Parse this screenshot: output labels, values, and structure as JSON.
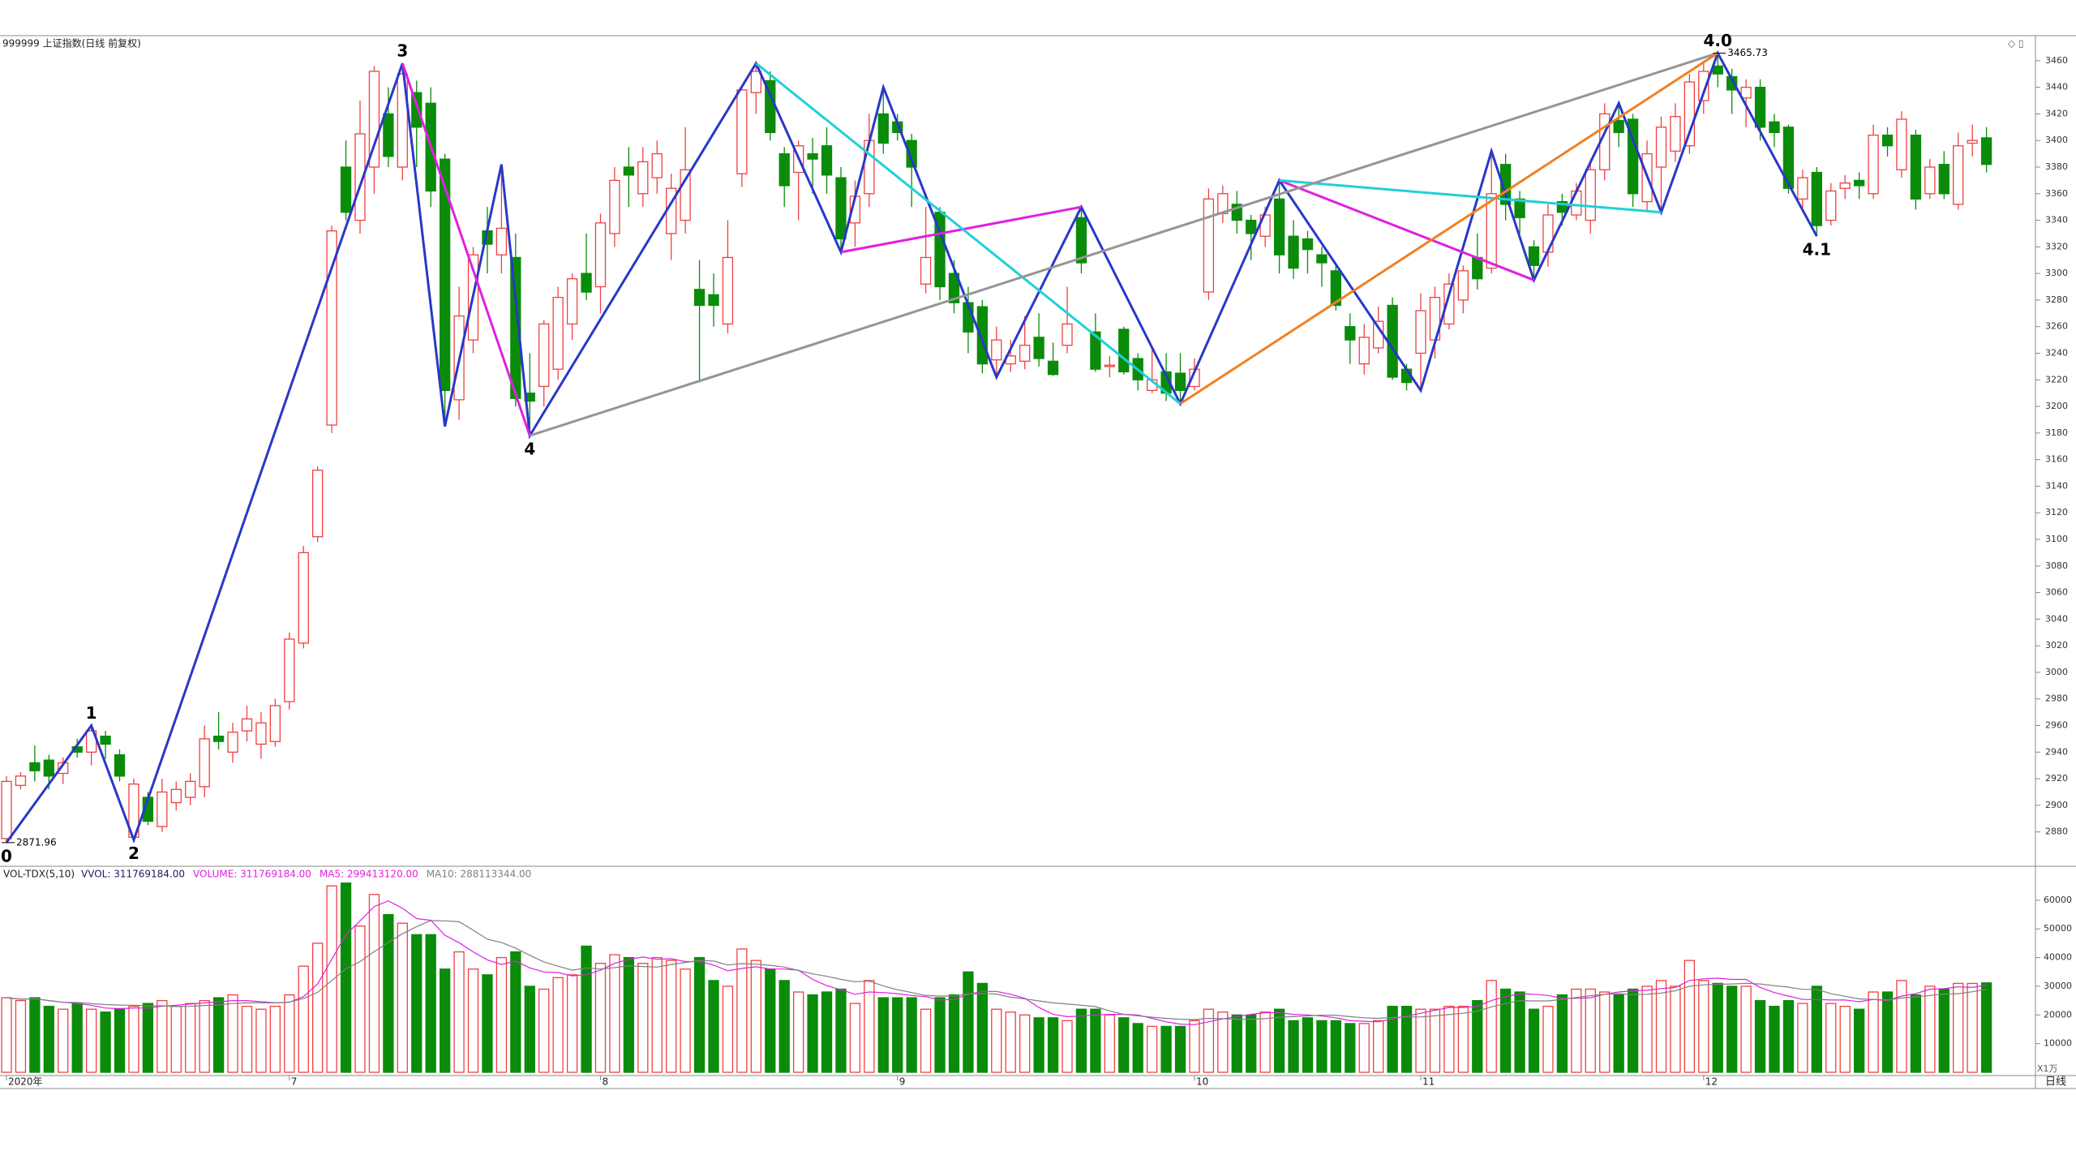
{
  "chart_data": {
    "type": "candlestick",
    "title": "999999 上证指数(日线 前复权)",
    "period_label": "日线",
    "categories": [
      "2020年",
      null,
      null,
      null,
      null,
      null,
      null,
      null,
      null,
      null,
      null,
      null,
      null,
      null,
      null,
      null,
      null,
      null,
      null,
      null,
      "7",
      null,
      null,
      null,
      null,
      null,
      null,
      null,
      null,
      null,
      null,
      null,
      null,
      null,
      null,
      null,
      null,
      null,
      null,
      null,
      null,
      null,
      "8",
      null,
      null,
      null,
      null,
      null,
      null,
      null,
      null,
      null,
      null,
      null,
      null,
      null,
      null,
      null,
      null,
      null,
      null,
      null,
      null,
      "9",
      null,
      null,
      null,
      null,
      null,
      null,
      null,
      null,
      null,
      null,
      null,
      null,
      null,
      null,
      null,
      null,
      null,
      null,
      null,
      null,
      "10",
      null,
      null,
      null,
      null,
      null,
      null,
      null,
      null,
      null,
      null,
      null,
      null,
      null,
      null,
      null,
      "11",
      null,
      null,
      null,
      null,
      null,
      null,
      null,
      null,
      null,
      null,
      null,
      null,
      null,
      null,
      null,
      null,
      null,
      null,
      null,
      "12",
      null,
      null,
      null,
      null,
      null,
      null,
      null,
      null,
      null,
      null,
      null,
      null,
      null,
      null,
      null,
      null,
      null,
      null,
      null,
      null
    ],
    "open": [
      2875,
      2915,
      2932,
      2934,
      2924,
      2944,
      2940,
      2952,
      2938,
      2876,
      2906,
      2884,
      2902,
      2906,
      2914,
      2952,
      2940,
      2956,
      2946,
      2948,
      2978,
      3022,
      3102,
      3186,
      3380,
      3340,
      3380,
      3420,
      3380,
      3436,
      3428,
      3386,
      3205,
      3250,
      3332,
      3314,
      3312,
      3210,
      3215,
      3228,
      3262,
      3300,
      3290,
      3330,
      3380,
      3360,
      3372,
      3330,
      3340,
      3288,
      3284,
      3262,
      3375,
      3436,
      3445,
      3390,
      3376,
      3390,
      3396,
      3372,
      3338,
      3360,
      3420,
      3414,
      3400,
      3292,
      3346,
      3300,
      3278,
      3275,
      3235,
      3232,
      3234,
      3252,
      3234,
      3246,
      3342,
      3256,
      3230,
      3258,
      3236,
      3212,
      3226,
      3225,
      3215,
      3286,
      3345,
      3352,
      3340,
      3328,
      3356,
      3328,
      3326,
      3314,
      3302,
      3260,
      3232,
      3244,
      3276,
      3228,
      3240,
      3250,
      3262,
      3280,
      3312,
      3304,
      3382,
      3356,
      3320,
      3316,
      3354,
      3344,
      3340,
      3378,
      3415,
      3416,
      3354,
      3380,
      3392,
      3396,
      3430,
      3456,
      3448,
      3432,
      3440,
      3414,
      3410,
      3356,
      3376,
      3340,
      3364,
      3370,
      3360,
      3404,
      3378,
      3404,
      3360,
      3382,
      3352,
      3398,
      3402
    ],
    "high": [
      2922,
      2925,
      2945,
      2938,
      2936,
      2950,
      2960,
      2956,
      2942,
      2920,
      2910,
      2920,
      2918,
      2924,
      2960,
      2970,
      2962,
      2975,
      2970,
      2980,
      3030,
      3095,
      3155,
      3336,
      3400,
      3430,
      3456,
      3440,
      3458,
      3445,
      3440,
      3390,
      3290,
      3320,
      3350,
      3382,
      3330,
      3240,
      3265,
      3290,
      3300,
      3330,
      3345,
      3380,
      3395,
      3395,
      3400,
      3375,
      3410,
      3310,
      3300,
      3340,
      3440,
      3458,
      3452,
      3395,
      3400,
      3402,
      3410,
      3380,
      3370,
      3420,
      3440,
      3420,
      3405,
      3350,
      3350,
      3310,
      3290,
      3280,
      3260,
      3250,
      3268,
      3270,
      3248,
      3290,
      3350,
      3270,
      3238,
      3260,
      3240,
      3244,
      3240,
      3240,
      3236,
      3364,
      3366,
      3362,
      3344,
      3350,
      3370,
      3340,
      3332,
      3320,
      3308,
      3270,
      3262,
      3275,
      3282,
      3232,
      3285,
      3290,
      3300,
      3306,
      3330,
      3392,
      3390,
      3362,
      3325,
      3352,
      3360,
      3368,
      3386,
      3428,
      3428,
      3420,
      3400,
      3418,
      3428,
      3450,
      3460,
      3465.73,
      3454,
      3446,
      3446,
      3420,
      3412,
      3378,
      3380,
      3368,
      3374,
      3376,
      3412,
      3410,
      3422,
      3408,
      3386,
      3392,
      3406,
      3412,
      3410
    ],
    "low": [
      2871.96,
      2912,
      2918,
      2912,
      2916,
      2936,
      2930,
      2935,
      2918,
      2874,
      2885,
      2880,
      2896,
      2900,
      2906,
      2942,
      2932,
      2948,
      2935,
      2944,
      2972,
      3018,
      3098,
      3180,
      3340,
      3330,
      3360,
      3380,
      3370,
      3380,
      3350,
      3185,
      3190,
      3240,
      3300,
      3300,
      3200,
      3178,
      3200,
      3220,
      3250,
      3280,
      3270,
      3320,
      3350,
      3350,
      3360,
      3310,
      3330,
      3218,
      3260,
      3255,
      3365,
      3420,
      3400,
      3350,
      3340,
      3360,
      3360,
      3316,
      3320,
      3350,
      3390,
      3400,
      3350,
      3285,
      3280,
      3270,
      3240,
      3225,
      3222,
      3226,
      3228,
      3230,
      3223,
      3240,
      3300,
      3226,
      3222,
      3224,
      3212,
      3210,
      3204,
      3202,
      3212,
      3280,
      3338,
      3330,
      3310,
      3320,
      3300,
      3296,
      3300,
      3290,
      3272,
      3232,
      3224,
      3240,
      3220,
      3212,
      3212,
      3236,
      3258,
      3270,
      3288,
      3300,
      3340,
      3330,
      3295,
      3305,
      3336,
      3340,
      3330,
      3370,
      3395,
      3350,
      3346,
      3346,
      3384,
      3390,
      3420,
      3440,
      3420,
      3410,
      3400,
      3395,
      3360,
      3348,
      3328,
      3336,
      3356,
      3356,
      3356,
      3388,
      3372,
      3348,
      3356,
      3356,
      3348,
      3388,
      3376
    ],
    "close": [
      2918,
      2922,
      2926,
      2922,
      2932,
      2940,
      2956,
      2946,
      2922,
      2916,
      2888,
      2910,
      2912,
      2918,
      2950,
      2948,
      2955,
      2965,
      2962,
      2975,
      3025,
      3090,
      3152,
      3332,
      3346,
      3405,
      3452,
      3388,
      3450,
      3410,
      3362,
      3212,
      3268,
      3314,
      3322,
      3334,
      3206,
      3204,
      3262,
      3282,
      3296,
      3286,
      3338,
      3370,
      3374,
      3384,
      3390,
      3364,
      3378,
      3276,
      3276,
      3312,
      3438,
      3452,
      3406,
      3366,
      3396,
      3386,
      3374,
      3326,
      3358,
      3400,
      3398,
      3406,
      3380,
      3312,
      3290,
      3278,
      3256,
      3232,
      3250,
      3238,
      3246,
      3236,
      3224,
      3262,
      3308,
      3228,
      3231,
      3226,
      3220,
      3220,
      3210,
      3212,
      3228,
      3356,
      3360,
      3340,
      3330,
      3344,
      3314,
      3304,
      3318,
      3308,
      3276,
      3250,
      3252,
      3264,
      3222,
      3218,
      3272,
      3282,
      3292,
      3302,
      3296,
      3360,
      3352,
      3342,
      3306,
      3344,
      3346,
      3362,
      3378,
      3420,
      3406,
      3360,
      3390,
      3410,
      3418,
      3444,
      3452,
      3450,
      3438,
      3440,
      3410,
      3406,
      3364,
      3372,
      3336,
      3362,
      3368,
      3366,
      3404,
      3396,
      3416,
      3356,
      3380,
      3360,
      3396,
      3400,
      3382
    ],
    "volume": [
      26000,
      25000,
      26000,
      23000,
      22000,
      24000,
      22000,
      21000,
      22000,
      23000,
      24000,
      25000,
      23000,
      24000,
      25000,
      26000,
      27000,
      23000,
      22000,
      23000,
      27000,
      37000,
      45000,
      65000,
      66000,
      51000,
      62000,
      55000,
      52000,
      48000,
      48000,
      36000,
      42000,
      36000,
      34000,
      40000,
      42000,
      30000,
      29000,
      33000,
      34000,
      44000,
      38000,
      41000,
      40000,
      38000,
      40000,
      39000,
      36000,
      40000,
      32000,
      30000,
      43000,
      39000,
      36000,
      32000,
      28000,
      27000,
      28000,
      29000,
      24000,
      32000,
      26000,
      26000,
      26000,
      22000,
      26000,
      27000,
      35000,
      31000,
      22000,
      21000,
      20000,
      19000,
      19000,
      18000,
      22000,
      22000,
      20000,
      19000,
      17000,
      16000,
      16000,
      16000,
      18000,
      22000,
      21000,
      20000,
      20000,
      21000,
      22000,
      18000,
      19000,
      18000,
      18000,
      17000,
      17000,
      18000,
      23000,
      23000,
      22000,
      22000,
      23000,
      23000,
      25000,
      32000,
      29000,
      28000,
      22000,
      23000,
      27000,
      29000,
      29000,
      28000,
      27000,
      29000,
      30000,
      32000,
      30000,
      39000,
      32000,
      31000,
      30000,
      30000,
      25000,
      23000,
      25000,
      24000,
      30000,
      24000,
      23000,
      22000,
      28000,
      28000,
      32000,
      27000,
      30000,
      29000,
      31000,
      31000,
      31177
    ],
    "up_color": "#f04040",
    "down_color": "#0a8c0a",
    "ylim": [
      2856,
      3466
    ],
    "yticks": [
      2880,
      2900,
      2920,
      2940,
      2960,
      2980,
      3000,
      3020,
      3040,
      3060,
      3080,
      3100,
      3120,
      3140,
      3160,
      3180,
      3200,
      3220,
      3240,
      3260,
      3280,
      3300,
      3320,
      3340,
      3360,
      3380,
      3400,
      3420,
      3440,
      3460
    ],
    "wave_lines": [
      {
        "color": "#2838c8",
        "x": [
          0,
          6,
          9,
          28,
          31,
          35,
          37,
          53,
          59,
          62,
          70,
          76,
          83,
          90,
          100,
          105,
          108,
          114,
          117,
          121,
          128
        ],
        "y": [
          2871.96,
          2960,
          2874,
          3458,
          3185,
          3382,
          3178,
          3458,
          3316,
          3440,
          3222,
          3350,
          3202,
          3370,
          3212,
          3392,
          3295,
          3428,
          3346,
          3465.73,
          3328
        ]
      },
      {
        "color": "#e020e0",
        "x": [
          28,
          37
        ],
        "y": [
          3458,
          3178
        ]
      },
      {
        "color": "#e020e0",
        "x": [
          59,
          76
        ],
        "y": [
          3316,
          3350
        ]
      },
      {
        "color": "#e020e0",
        "x": [
          90,
          108
        ],
        "y": [
          3370,
          3295
        ]
      },
      {
        "color": "#20d0d8",
        "x": [
          53,
          83
        ],
        "y": [
          3458,
          3202
        ]
      },
      {
        "color": "#20d0d8",
        "x": [
          90,
          117
        ],
        "y": [
          3370,
          3346
        ]
      },
      {
        "color": "#959595",
        "x": [
          37,
          121
        ],
        "y": [
          3178,
          3465.73
        ]
      },
      {
        "color": "#f08020",
        "x": [
          83,
          121
        ],
        "y": [
          3202,
          3465.73
        ]
      }
    ],
    "pivot_labels": [
      {
        "label": "0",
        "x": 0,
        "y": 2871.96,
        "position": "below"
      },
      {
        "label": "1",
        "x": 6,
        "y": 2960,
        "position": "above"
      },
      {
        "label": "2",
        "x": 9,
        "y": 2874,
        "position": "below"
      },
      {
        "label": "3",
        "x": 28,
        "y": 3458,
        "position": "above"
      },
      {
        "label": "4",
        "x": 37,
        "y": 3178,
        "position": "below"
      },
      {
        "label": "4.0",
        "x": 121,
        "y": 3465.73,
        "position": "above"
      },
      {
        "label": "4.1",
        "x": 128,
        "y": 3328,
        "position": "below"
      }
    ],
    "price_labels": [
      {
        "x": 0,
        "value": 2871.96
      },
      {
        "x": 121,
        "value": 3465.73
      }
    ],
    "volume_panel": {
      "title": "VOL-TDX(5,10)",
      "legend": [
        {
          "label": "VVOL: 311769184.00",
          "color": "#1a1a60"
        },
        {
          "label": "VOLUME: 311769184.00",
          "color": "#e020e0"
        },
        {
          "label": "MA5: 299413120.00",
          "color": "#e020e0"
        },
        {
          "label": "MA10: 288113344.00",
          "color": "#808080"
        }
      ],
      "unit_label": "X1万",
      "ylim": [
        0,
        71000
      ],
      "yticks": [
        10000,
        20000,
        30000,
        40000,
        50000,
        60000
      ]
    }
  }
}
